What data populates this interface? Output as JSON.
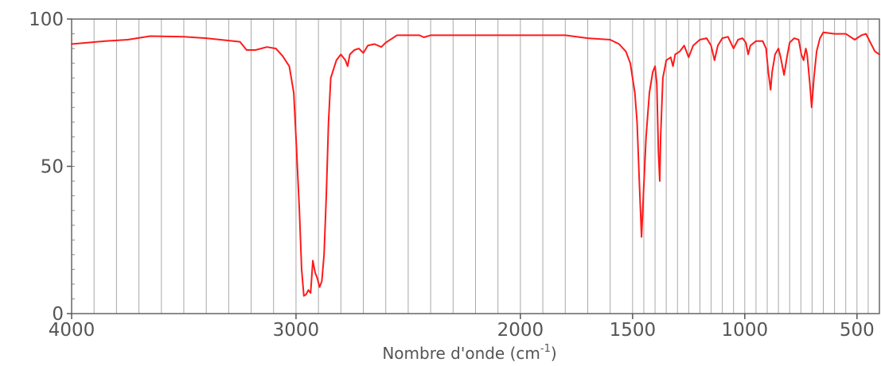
{
  "chart_data": {
    "type": "line",
    "title": "",
    "xlabel": "Nombre d'onde (cm",
    "xlabel_sup": "-1",
    "xlabel_close": ")",
    "ylabel": "",
    "x_reversed": true,
    "xlim": [
      4000,
      400
    ],
    "ylim": [
      0,
      100
    ],
    "x_ticks": [
      {
        "value": 4000,
        "label": "4000"
      },
      {
        "value": 3000,
        "label": "3000"
      },
      {
        "value": 2000,
        "label": "2000"
      },
      {
        "value": 1500,
        "label": "1500"
      },
      {
        "value": 1000,
        "label": "1000"
      },
      {
        "value": 500,
        "label": "500"
      }
    ],
    "y_ticks": [
      {
        "value": 0,
        "label": "0"
      },
      {
        "value": 50,
        "label": "50"
      },
      {
        "value": 100,
        "label": "100"
      }
    ],
    "x_grid": [
      4000,
      3900,
      3800,
      3700,
      3600,
      3500,
      3400,
      3300,
      3200,
      3100,
      3000,
      2900,
      2800,
      2700,
      2600,
      2500,
      2400,
      2300,
      2200,
      2100,
      2000,
      1900,
      1800,
      1700,
      1600,
      1500,
      1450,
      1400,
      1350,
      1300,
      1250,
      1200,
      1150,
      1100,
      1050,
      1000,
      950,
      900,
      850,
      800,
      750,
      700,
      650,
      600,
      550,
      500,
      450
    ],
    "line_color": "#ff1a1a",
    "series": [
      {
        "values": [
          [
            4000,
            91.5
          ],
          [
            3850,
            92.5
          ],
          [
            3750,
            93
          ],
          [
            3650,
            94.2
          ],
          [
            3500,
            94
          ],
          [
            3400,
            93.5
          ],
          [
            3250,
            92.3
          ],
          [
            3220,
            89.5
          ],
          [
            3180,
            89.5
          ],
          [
            3130,
            90.5
          ],
          [
            3090,
            90
          ],
          [
            3060,
            87.5
          ],
          [
            3030,
            84
          ],
          [
            3010,
            75
          ],
          [
            3000,
            60
          ],
          [
            2985,
            35
          ],
          [
            2975,
            15
          ],
          [
            2965,
            6
          ],
          [
            2955,
            6.5
          ],
          [
            2945,
            8
          ],
          [
            2935,
            7
          ],
          [
            2925,
            18
          ],
          [
            2915,
            14
          ],
          [
            2905,
            12
          ],
          [
            2895,
            9
          ],
          [
            2885,
            11
          ],
          [
            2875,
            20
          ],
          [
            2865,
            40
          ],
          [
            2855,
            65
          ],
          [
            2845,
            80
          ],
          [
            2820,
            86
          ],
          [
            2800,
            88
          ],
          [
            2780,
            86
          ],
          [
            2770,
            84
          ],
          [
            2760,
            88
          ],
          [
            2740,
            89.5
          ],
          [
            2720,
            90
          ],
          [
            2700,
            88.5
          ],
          [
            2680,
            91
          ],
          [
            2650,
            91.5
          ],
          [
            2620,
            90.5
          ],
          [
            2600,
            92
          ],
          [
            2550,
            94.5
          ],
          [
            2450,
            94.5
          ],
          [
            2430,
            93.8
          ],
          [
            2400,
            94.5
          ],
          [
            2000,
            94.5
          ],
          [
            1800,
            94.5
          ],
          [
            1700,
            93.5
          ],
          [
            1600,
            93
          ],
          [
            1560,
            91.5
          ],
          [
            1530,
            89
          ],
          [
            1510,
            85
          ],
          [
            1490,
            75
          ],
          [
            1480,
            65
          ],
          [
            1470,
            45
          ],
          [
            1460,
            26
          ],
          [
            1452,
            40
          ],
          [
            1440,
            60
          ],
          [
            1425,
            75
          ],
          [
            1410,
            82
          ],
          [
            1400,
            84
          ],
          [
            1392,
            78
          ],
          [
            1385,
            55
          ],
          [
            1379,
            45
          ],
          [
            1375,
            60
          ],
          [
            1365,
            80
          ],
          [
            1350,
            86
          ],
          [
            1330,
            87
          ],
          [
            1320,
            84
          ],
          [
            1310,
            88
          ],
          [
            1290,
            89
          ],
          [
            1270,
            91
          ],
          [
            1250,
            87
          ],
          [
            1230,
            91
          ],
          [
            1200,
            93
          ],
          [
            1170,
            93.5
          ],
          [
            1150,
            91
          ],
          [
            1135,
            86
          ],
          [
            1120,
            91
          ],
          [
            1100,
            93.5
          ],
          [
            1075,
            94
          ],
          [
            1050,
            90
          ],
          [
            1030,
            93
          ],
          [
            1010,
            93.5
          ],
          [
            995,
            92
          ],
          [
            985,
            88
          ],
          [
            975,
            91
          ],
          [
            950,
            92.5
          ],
          [
            920,
            92.5
          ],
          [
            905,
            90
          ],
          [
            895,
            82
          ],
          [
            885,
            76
          ],
          [
            878,
            82
          ],
          [
            865,
            88
          ],
          [
            850,
            90
          ],
          [
            840,
            87
          ],
          [
            825,
            81
          ],
          [
            812,
            87
          ],
          [
            800,
            92
          ],
          [
            780,
            93.5
          ],
          [
            760,
            93
          ],
          [
            748,
            88
          ],
          [
            738,
            86
          ],
          [
            728,
            90
          ],
          [
            722,
            88
          ],
          [
            710,
            78
          ],
          [
            702,
            70
          ],
          [
            692,
            80
          ],
          [
            680,
            89
          ],
          [
            665,
            93.5
          ],
          [
            650,
            95.5
          ],
          [
            600,
            95
          ],
          [
            550,
            95
          ],
          [
            510,
            93
          ],
          [
            480,
            94.5
          ],
          [
            460,
            95
          ],
          [
            440,
            92
          ],
          [
            420,
            89
          ],
          [
            400,
            88
          ]
        ]
      }
    ]
  }
}
